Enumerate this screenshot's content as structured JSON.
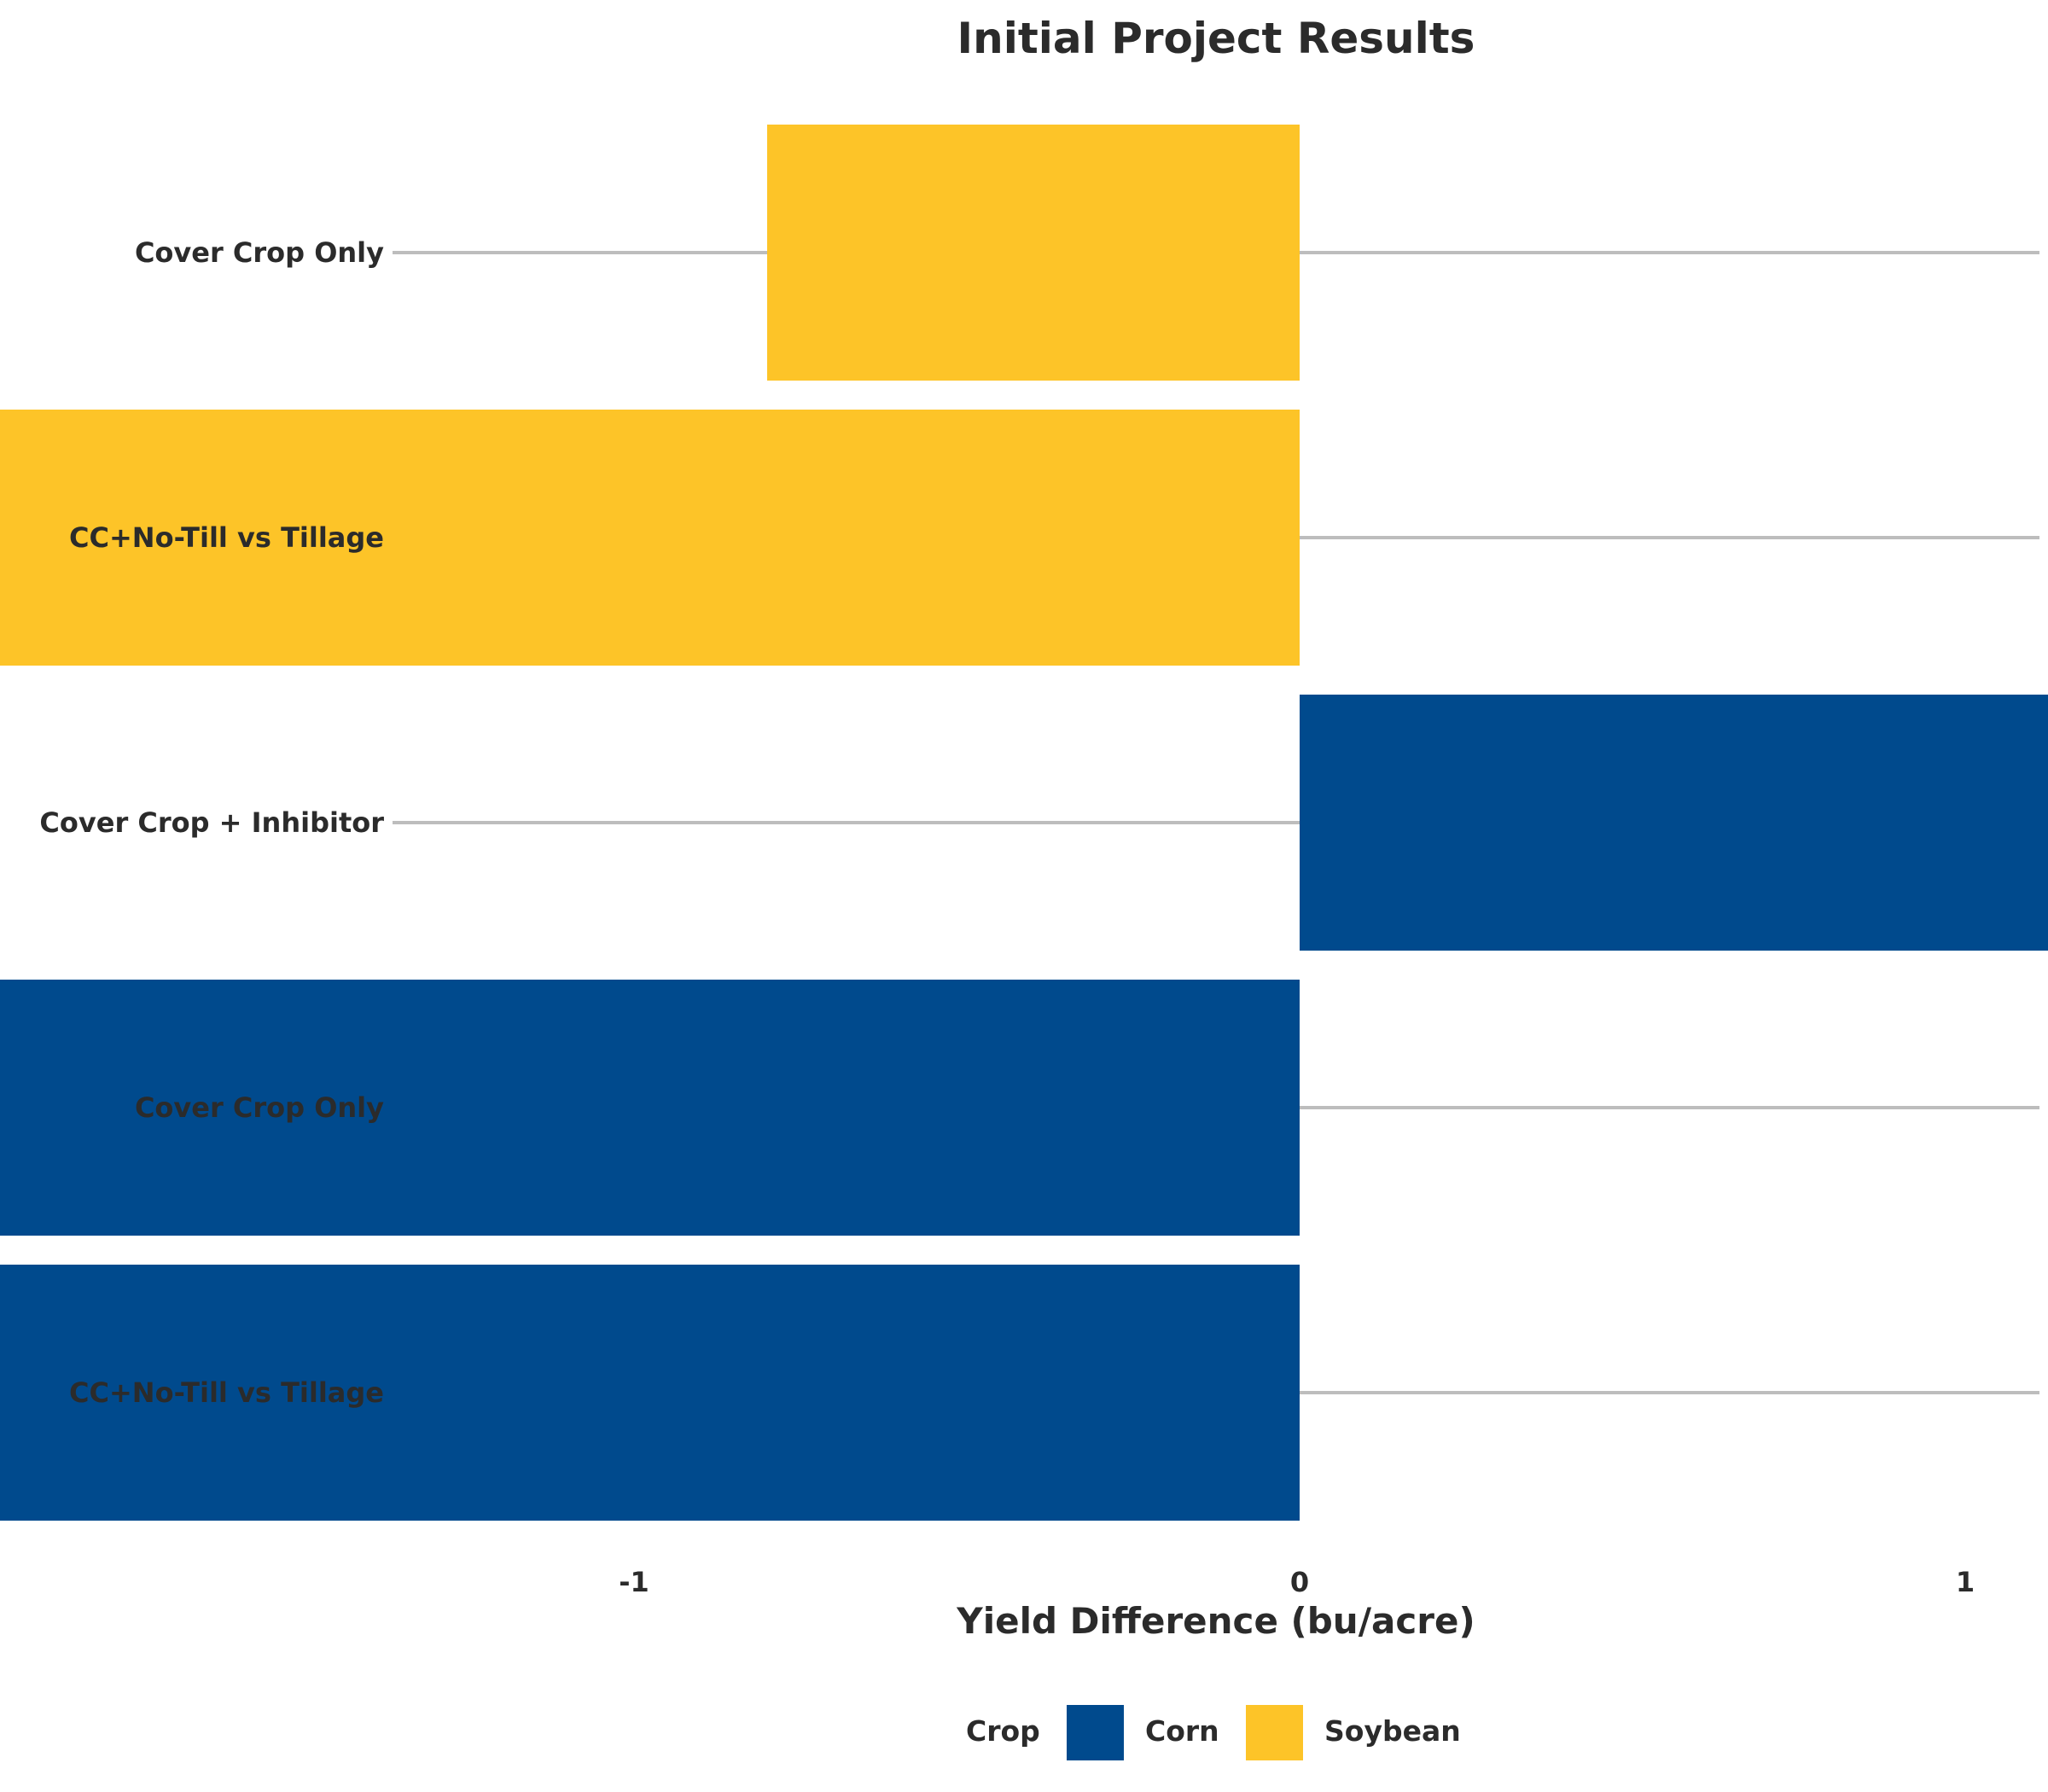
{
  "chart_data": {
    "type": "bar",
    "orientation": "horizontal",
    "title": "Initial Project Results",
    "xlabel": "Yield Difference (bu/acre)",
    "ylabel": "",
    "xlim": [
      -2.6,
      2.2
    ],
    "x_ticks": [
      "-2",
      "-1",
      "0",
      "1",
      "2"
    ],
    "x_tick_values": [
      -2,
      -1,
      0,
      1,
      2
    ],
    "grid": "horizontal lines at categories",
    "legend": {
      "title": "Crop",
      "placement": "bottom-center",
      "entries": [
        {
          "name": "Corn",
          "color": "#004a8d"
        },
        {
          "name": "Soybean",
          "color": "#fdc428"
        }
      ]
    },
    "bars": [
      {
        "label": "Cover Crop Only",
        "crop": "Soybean",
        "value": -0.8
      },
      {
        "label": "CC+No-Till vs Tillage",
        "crop": "Soybean",
        "value": -2.5
      },
      {
        "label": "Cover Crop + Inhibitor",
        "crop": "Corn",
        "value": 2.0
      },
      {
        "label": "Cover Crop Only",
        "crop": "Corn",
        "value": -2.3
      },
      {
        "label": "CC+No-Till vs Tillage",
        "crop": "Corn",
        "value": -2.4
      }
    ]
  }
}
